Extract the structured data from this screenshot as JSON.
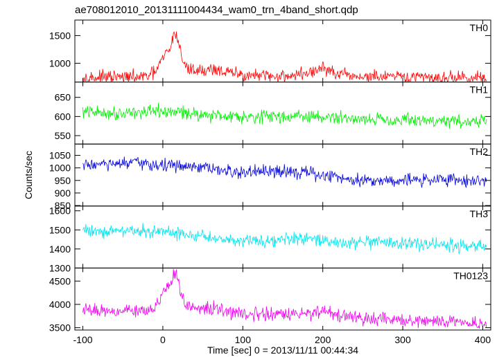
{
  "chart_data": {
    "type": "line",
    "title": "ae708012010_20131111004434_wam0_trn_4band_short.qdp",
    "xlabel": "Time [sec] 0 = 2013/11/11 00:44:34",
    "ylabel": "Counts/sec",
    "xlim": [
      -110,
      410
    ],
    "x_ticks": [
      -100,
      0,
      100,
      200,
      300,
      400
    ],
    "x": [
      -100,
      -80,
      -60,
      -40,
      -20,
      -10,
      0,
      5,
      10,
      15,
      20,
      25,
      30,
      40,
      50,
      60,
      70,
      80,
      100,
      120,
      140,
      160,
      180,
      195,
      200,
      210,
      220,
      240,
      260,
      280,
      300,
      320,
      340,
      360,
      380,
      405
    ],
    "series": [
      {
        "name": "TH0",
        "color": "#ff0000",
        "ylim": [
          660,
          1780
        ],
        "y_ticks": [
          1000,
          1500
        ],
        "values": [
          745,
          740,
          745,
          740,
          760,
          830,
          1080,
          1200,
          1280,
          1600,
          1350,
          1050,
          900,
          880,
          860,
          900,
          880,
          830,
          790,
          770,
          760,
          780,
          820,
          870,
          940,
          840,
          790,
          760,
          755,
          750,
          745,
          745,
          740,
          740,
          735,
          730
        ]
      },
      {
        "name": "TH1",
        "color": "#00ee00",
        "ylim": [
          528,
          690
        ],
        "y_ticks": [
          550,
          600,
          650
        ],
        "values": [
          612,
          610,
          608,
          612,
          610,
          612,
          613,
          610,
          612,
          610,
          612,
          611,
          610,
          606,
          605,
          604,
          603,
          602,
          601,
          600,
          600,
          601,
          599,
          598,
          598,
          597,
          596,
          595,
          594,
          592,
          591,
          590,
          589,
          588,
          587,
          586
        ]
      },
      {
        "name": "TH2",
        "color": "#0000dd",
        "ylim": [
          848,
          1095
        ],
        "y_ticks": [
          850,
          900,
          950,
          1000,
          1050
        ],
        "values": [
          1010,
          1015,
          1012,
          1020,
          1015,
          1012,
          1010,
          1008,
          1010,
          1012,
          1008,
          1005,
          1000,
          1000,
          1000,
          995,
          990,
          985,
          980,
          985,
          982,
          990,
          980,
          970,
          968,
          970,
          960,
          955,
          950,
          950,
          952,
          950,
          955,
          955,
          950,
          948
        ]
      },
      {
        "name": "TH3",
        "color": "#00e5ee",
        "ylim": [
          1300,
          1625
        ],
        "y_ticks": [
          1300,
          1400,
          1500,
          1600
        ],
        "values": [
          1500,
          1495,
          1490,
          1500,
          1490,
          1490,
          1488,
          1485,
          1485,
          1480,
          1480,
          1478,
          1475,
          1470,
          1465,
          1460,
          1455,
          1450,
          1448,
          1445,
          1445,
          1450,
          1450,
          1445,
          1440,
          1438,
          1435,
          1432,
          1430,
          1430,
          1428,
          1425,
          1425,
          1420,
          1415,
          1410
        ]
      },
      {
        "name": "TH0123",
        "color": "#ee00ee",
        "ylim": [
          3450,
          4780
        ],
        "y_ticks": [
          3500,
          4000,
          4500
        ],
        "values": [
          3880,
          3870,
          3870,
          3870,
          3900,
          3970,
          4200,
          4300,
          4400,
          4700,
          4450,
          4100,
          3950,
          3920,
          3900,
          3920,
          3890,
          3840,
          3800,
          3790,
          3780,
          3780,
          3800,
          3850,
          3900,
          3830,
          3760,
          3700,
          3680,
          3670,
          3650,
          3640,
          3630,
          3620,
          3610,
          3600
        ]
      }
    ],
    "grid": false
  }
}
